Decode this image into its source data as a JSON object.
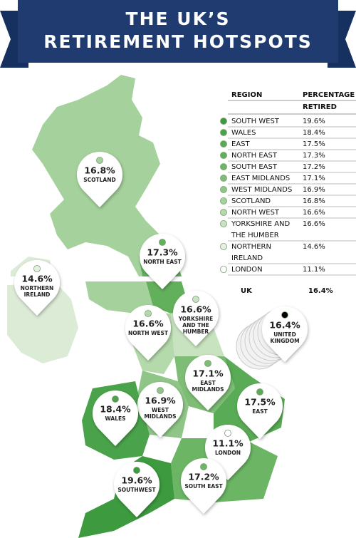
{
  "header": {
    "title": [
      "THE UK’S",
      "RETIREMENT HOTSPOTS"
    ]
  },
  "table": {
    "columns": [
      "REGION",
      [
        "PERCENTAGE",
        "RETIRED"
      ]
    ],
    "rows": [
      {
        "region": [
          "SOUTH WEST"
        ],
        "value": "19.6%",
        "color": "#3d9a3e"
      },
      {
        "region": [
          "WALES"
        ],
        "value": "18.4%",
        "color": "#4aa34a"
      },
      {
        "region": [
          "EAST"
        ],
        "value": "17.5%",
        "color": "#5aab55"
      },
      {
        "region": [
          "NORTH EAST"
        ],
        "value": "17.3%",
        "color": "#62b05c"
      },
      {
        "region": [
          "SOUTH EAST"
        ],
        "value": "17.2%",
        "color": "#6bb565"
      },
      {
        "region": [
          "EAST MIDLANDS"
        ],
        "value": "17.1%",
        "color": "#7dbd75"
      },
      {
        "region": [
          "WEST MIDLANDS"
        ],
        "value": "16.9%",
        "color": "#8fc687"
      },
      {
        "region": [
          "SCOTLAND"
        ],
        "value": "16.8%",
        "color": "#a5d19c"
      },
      {
        "region": [
          "NORTH WEST"
        ],
        "value": "16.6%",
        "color": "#b4d9ab"
      },
      {
        "region": [
          "YORKSHIRE AND",
          "THE HUMBER"
        ],
        "value": "16.6%",
        "color": "#c8e3bf"
      },
      {
        "region": [
          "NORTHERN",
          "IRELAND"
        ],
        "value": "14.6%",
        "color": "#e6f1e2"
      },
      {
        "region": [
          "LONDON"
        ],
        "value": "11.1%",
        "color": "#ffffff"
      }
    ],
    "total": {
      "region": "UK",
      "value": "16.4%"
    }
  },
  "pins": [
    {
      "value": "16.8%",
      "label": [
        "SCOTLAND"
      ],
      "color": "#a5d19c"
    },
    {
      "value": "17.3%",
      "label": [
        "NORTH EAST"
      ],
      "color": "#62b05c"
    },
    {
      "value": "14.6%",
      "label": [
        "NORTHERN",
        "IRELAND"
      ],
      "color": "#e6f1e2"
    },
    {
      "value": "16.6%",
      "label": [
        "YORKSHIRE",
        "AND THE",
        "HUMBER"
      ],
      "color": "#c8e3bf"
    },
    {
      "value": "16.6%",
      "label": [
        "NORTH WEST"
      ],
      "color": "#b4d9ab"
    },
    {
      "value": "17.1%",
      "label": [
        "EAST",
        "MIDLANDS"
      ],
      "color": "#7dbd75"
    },
    {
      "value": "16.9%",
      "label": [
        "WEST",
        "MIDLANDS"
      ],
      "color": "#8fc687"
    },
    {
      "value": "18.4%",
      "label": [
        "WALES"
      ],
      "color": "#4aa34a"
    },
    {
      "value": "17.5%",
      "label": [
        "EAST"
      ],
      "color": "#5aab55"
    },
    {
      "value": "11.1%",
      "label": [
        "LONDON"
      ],
      "color": "#ffffff"
    },
    {
      "value": "19.6%",
      "label": [
        "SOUTHWEST"
      ],
      "color": "#3d9a3e"
    },
    {
      "value": "17.2%",
      "label": [
        "SOUTH EAST"
      ],
      "color": "#6bb565"
    },
    {
      "value": "16.4%",
      "label": [
        "UNITED",
        "KINGDOM"
      ],
      "color": "#000000"
    }
  ]
}
